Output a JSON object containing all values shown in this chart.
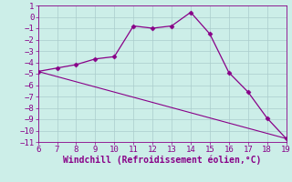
{
  "xlabel": "Windchill (Refroidissement éolien,°C)",
  "line1_x": [
    6,
    7,
    8,
    9,
    10,
    11,
    12,
    13,
    14,
    15,
    16,
    17,
    18,
    19
  ],
  "line1_y": [
    -4.8,
    -4.5,
    -4.2,
    -3.7,
    -3.5,
    -0.8,
    -1.0,
    -0.8,
    0.4,
    -1.5,
    -4.9,
    -6.6,
    -8.9,
    -10.7
  ],
  "line2_x": [
    6,
    19
  ],
  "line2_y": [
    -4.8,
    -10.7
  ],
  "line_color": "#880088",
  "marker": "D",
  "marker_size": 2.5,
  "bg_color": "#cceee8",
  "grid_color": "#aacccc",
  "xlim": [
    6,
    19
  ],
  "ylim": [
    -11,
    1
  ],
  "xticks": [
    6,
    7,
    8,
    9,
    10,
    11,
    12,
    13,
    14,
    15,
    16,
    17,
    18,
    19
  ],
  "yticks": [
    1,
    0,
    -1,
    -2,
    -3,
    -4,
    -5,
    -6,
    -7,
    -8,
    -9,
    -10,
    -11
  ],
  "tick_fontsize": 6.5,
  "label_fontsize": 7.0
}
